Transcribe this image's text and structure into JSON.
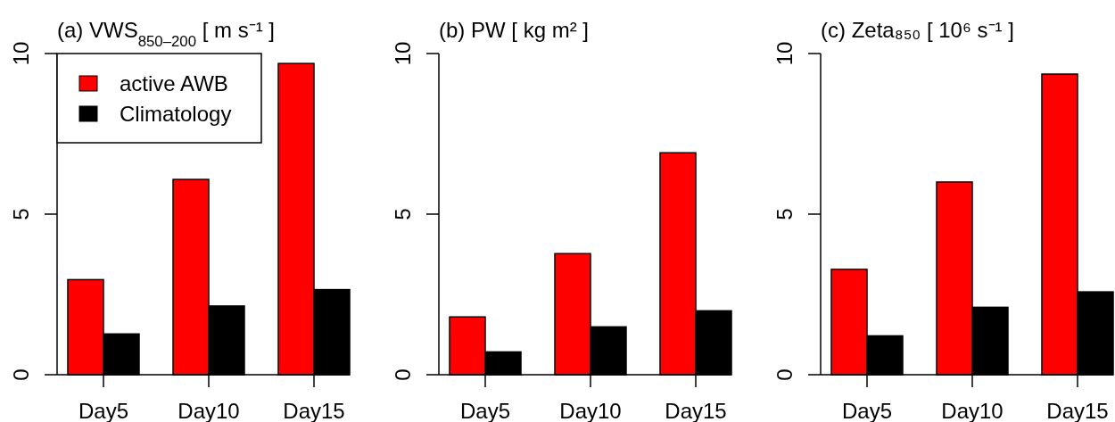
{
  "chart_data": [
    {
      "type": "bar",
      "title": "(a) VWS$_{850–200}$ [ m s⁻¹ ]",
      "categories": [
        "Day5",
        "Day10",
        "Day15"
      ],
      "series": [
        {
          "name": "active AWB",
          "color": "#ff0000",
          "values": [
            2.96,
            6.08,
            9.69
          ]
        },
        {
          "name": "Climatology",
          "color": "#000000",
          "values": [
            1.27,
            2.14,
            2.65
          ]
        }
      ],
      "ylim": [
        0,
        10
      ],
      "yticks": [
        0,
        5,
        10
      ],
      "legend": "top left",
      "grid": false
    },
    {
      "type": "bar",
      "title": "(b) PW [ kg m² ]",
      "categories": [
        "Day5",
        "Day10",
        "Day15"
      ],
      "series": [
        {
          "color": "#ff0000",
          "values": [
            1.8,
            3.77,
            6.91
          ]
        },
        {
          "color": "#000000",
          "values": [
            0.71,
            1.49,
            1.99
          ]
        }
      ],
      "ylim": [
        0,
        10
      ],
      "yticks": [
        0,
        5,
        10
      ],
      "grid": false
    },
    {
      "type": "bar",
      "title": "(c) Zeta₈₅₀ [ 10⁶ s⁻¹ ]",
      "categories": [
        "Day5",
        "Day10",
        "Day15"
      ],
      "series": [
        {
          "color": "#ff0000",
          "values": [
            3.28,
            6.0,
            9.36
          ]
        },
        {
          "color": "#000000",
          "values": [
            1.21,
            2.1,
            2.58
          ]
        }
      ],
      "ylim": [
        0,
        10
      ],
      "yticks": [
        0,
        5,
        10
      ],
      "grid": false
    }
  ]
}
